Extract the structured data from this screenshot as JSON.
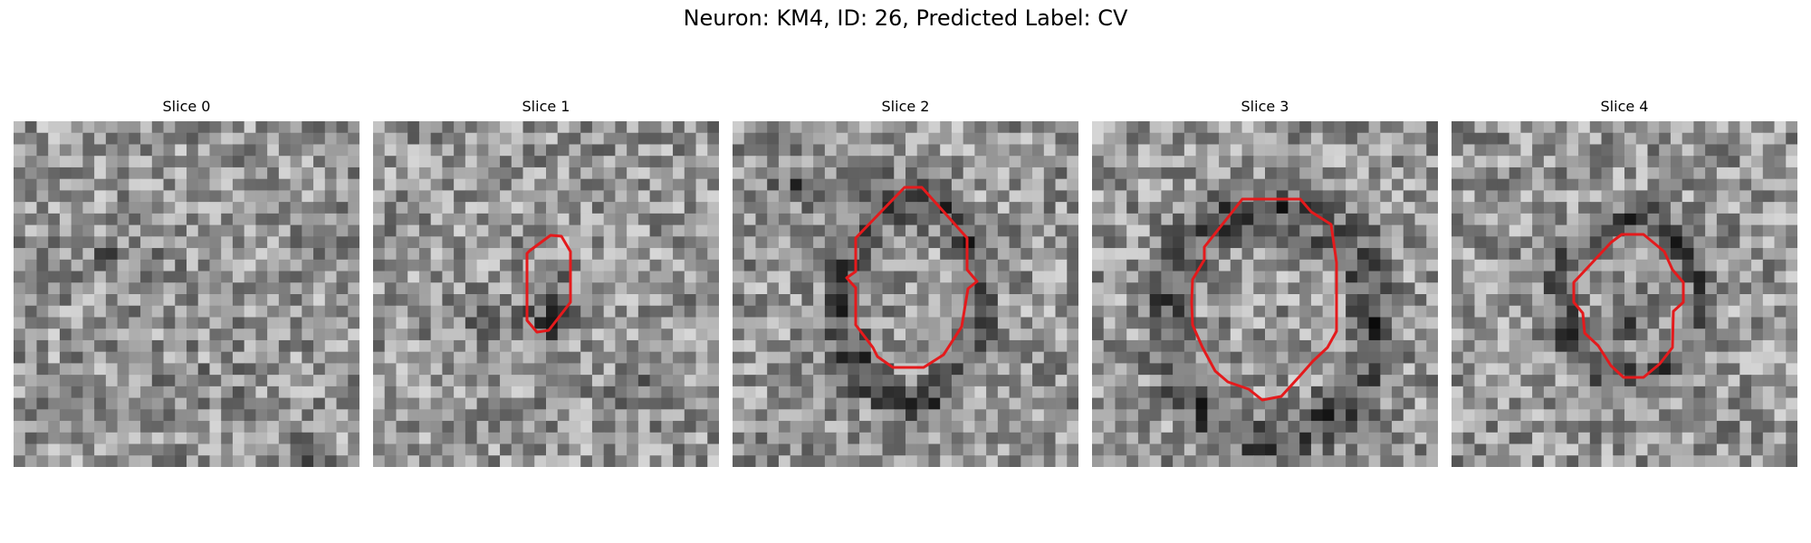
{
  "figure": {
    "title": "Neuron: KM4, ID: 26, Predicted Label: CV"
  },
  "colors": {
    "contour": "#e41a1c",
    "background": "#ffffff"
  },
  "panels": [
    {
      "title": "Slice 0",
      "has_contour": false,
      "contour_semantic": "none"
    },
    {
      "title": "Slice 1",
      "has_contour": true,
      "contour_semantic": "small-roi-outline"
    },
    {
      "title": "Slice 2",
      "has_contour": true,
      "contour_semantic": "roi-outline"
    },
    {
      "title": "Slice 3",
      "has_contour": true,
      "contour_semantic": "large-roi-outline"
    },
    {
      "title": "Slice 4",
      "has_contour": true,
      "contour_semantic": "roi-outline"
    }
  ],
  "image": {
    "colormap": "grayscale",
    "grid_cells_per_side": 30
  }
}
